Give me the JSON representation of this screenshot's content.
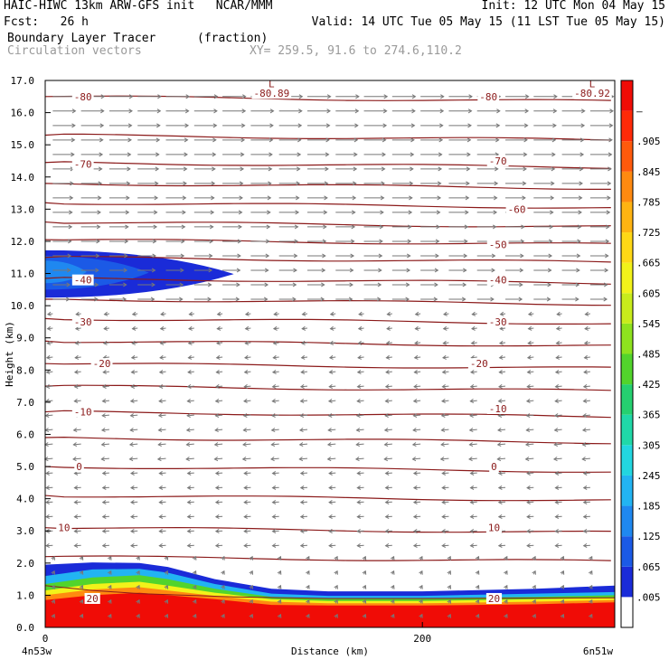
{
  "header": {
    "line1_left": "HAIC-HIWC 13km ARW-GFS init   NCAR/MMM",
    "line1_right": "Init: 12 UTC Mon 04 May 15",
    "line2_left": "Fcst:   26 h",
    "line2_right": "Valid: 14 UTC Tue 05 May 15 (11 LST Tue 05 May 15)",
    "field_name": "Boundary Layer Tracer",
    "field_units": "(fraction)",
    "vector_name": "Circulation vectors",
    "xy_range": "XY= 259.5, 91.6 to 274.6,110.2"
  },
  "chart_data": {
    "type": "heatmap",
    "ylabel": "Height (km)",
    "xlabel": "Distance (km)",
    "xlim": [
      0,
      302
    ],
    "ylim": [
      0,
      17
    ],
    "y_ticks": [
      "0.0",
      "1.0",
      "2.0",
      "3.0",
      "4.0",
      "5.0",
      "6.0",
      "7.0",
      "8.0",
      "9.0",
      "10.0",
      "11.0",
      "12.0",
      "13.0",
      "14.0",
      "15.0",
      "16.0",
      "17.0"
    ],
    "x_ticks": [
      {
        "value": 0,
        "label": "0"
      },
      {
        "value": 200,
        "label": "200"
      }
    ],
    "x_end_labels": {
      "left": "4n53w",
      "right": "6n51w"
    },
    "colorbar_labels": [
      ".005",
      ".065",
      ".125",
      ".185",
      ".245",
      ".305",
      ".365",
      ".425",
      ".485",
      ".545",
      ".605",
      ".665",
      ".725",
      ".785",
      ".845",
      ".905",
      "–"
    ],
    "colorbar_colors": [
      "#ffffff",
      "#1a2bd8",
      "#1b5ae6",
      "#1f88f0",
      "#22b4f2",
      "#22d6e0",
      "#20d8a8",
      "#25d070",
      "#52d42c",
      "#8ee21e",
      "#c8ec1c",
      "#f2f21a",
      "#ffd816",
      "#ffb412",
      "#ff8a10",
      "#ff5a0c",
      "#ff2a08",
      "#f00c06"
    ],
    "isotherm_color": "#8b1a1a",
    "isotherm_labels": [
      {
        "x": 20,
        "z": 16.5,
        "text": "-80"
      },
      {
        "x": 120,
        "z": 16.6,
        "text": "-80.89"
      },
      {
        "x": 235,
        "z": 16.5,
        "text": "-80"
      },
      {
        "x": 290,
        "z": 16.6,
        "text": "-80.92"
      },
      {
        "x": 20,
        "z": 14.4,
        "text": "-70"
      },
      {
        "x": 240,
        "z": 14.5,
        "text": "-70"
      },
      {
        "x": 250,
        "z": 13.0,
        "text": "-60"
      },
      {
        "x": 240,
        "z": 11.9,
        "text": "-50"
      },
      {
        "x": 20,
        "z": 10.8,
        "text": "-40"
      },
      {
        "x": 240,
        "z": 10.8,
        "text": "-40"
      },
      {
        "x": 20,
        "z": 9.5,
        "text": "-30"
      },
      {
        "x": 240,
        "z": 9.5,
        "text": "-30"
      },
      {
        "x": 30,
        "z": 8.2,
        "text": "-20"
      },
      {
        "x": 230,
        "z": 8.2,
        "text": "-20"
      },
      {
        "x": 20,
        "z": 6.7,
        "text": "-10"
      },
      {
        "x": 240,
        "z": 6.8,
        "text": "-10"
      },
      {
        "x": 18,
        "z": 5.0,
        "text": "0"
      },
      {
        "x": 238,
        "z": 5.0,
        "text": "0"
      },
      {
        "x": 10,
        "z": 3.1,
        "text": "10"
      },
      {
        "x": 238,
        "z": 3.1,
        "text": "10"
      },
      {
        "x": 25,
        "z": 0.9,
        "text": "20"
      },
      {
        "x": 238,
        "z": 0.9,
        "text": "20"
      }
    ],
    "low_markers": [
      {
        "x": 120,
        "z": 16.9,
        "text": "L"
      },
      {
        "x": 290,
        "z": 16.9,
        "text": "L"
      }
    ]
  }
}
